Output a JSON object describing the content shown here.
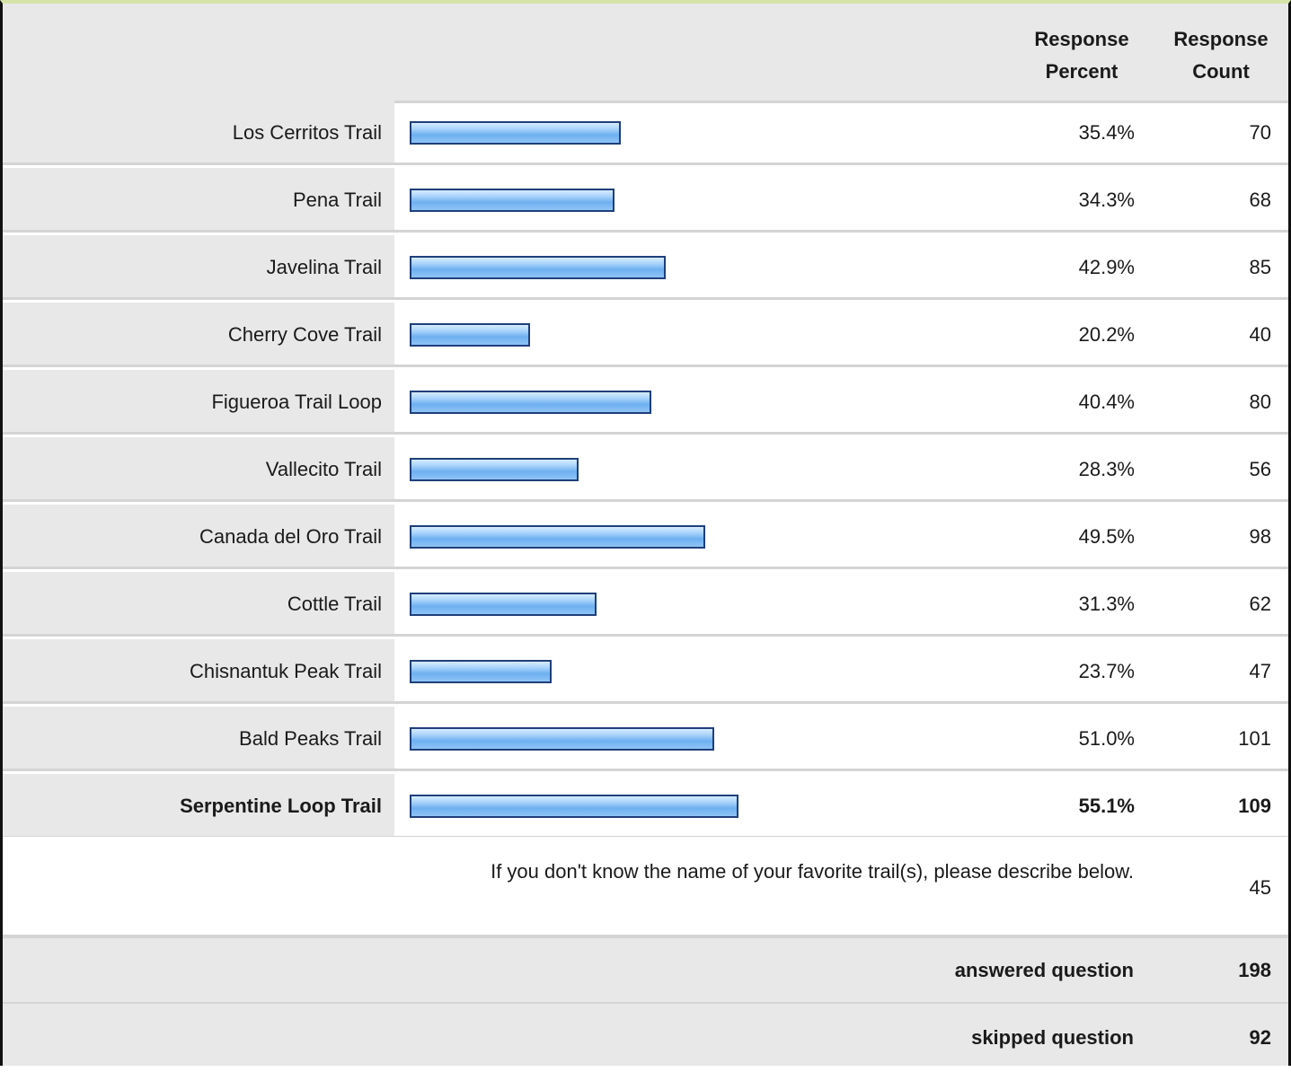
{
  "header": {
    "percent_label": "Response Percent",
    "count_label": "Response Count"
  },
  "chart_data": {
    "type": "bar",
    "categories": [
      "Los Cerritos Trail",
      "Pena Trail",
      "Javelina Trail",
      "Cherry Cove Trail",
      "Figueroa Trail Loop",
      "Vallecito Trail",
      "Canada del Oro Trail",
      "Cottle Trail",
      "Chisnantuk Peak Trail",
      "Bald Peaks Trail",
      "Serpentine Loop Trail"
    ],
    "percent_labels": [
      "35.4%",
      "34.3%",
      "42.9%",
      "20.2%",
      "40.4%",
      "28.3%",
      "49.5%",
      "31.3%",
      "23.7%",
      "51.0%",
      "55.1%"
    ],
    "values": [
      35.4,
      34.3,
      42.9,
      20.2,
      40.4,
      28.3,
      49.5,
      31.3,
      23.7,
      51.0,
      55.1
    ],
    "counts": [
      "70",
      "68",
      "85",
      "40",
      "80",
      "56",
      "98",
      "62",
      "47",
      "101",
      "109"
    ],
    "highlight_index": 10,
    "bar_color": "#8fc4f6",
    "bar_border": "#1f3f7a"
  },
  "other": {
    "text": "If you don't know the name of your favorite trail(s), please describe below.",
    "count": "45"
  },
  "summary": {
    "answered_label": "answered question",
    "answered_value": "198",
    "skipped_label": "skipped question",
    "skipped_value": "92"
  }
}
